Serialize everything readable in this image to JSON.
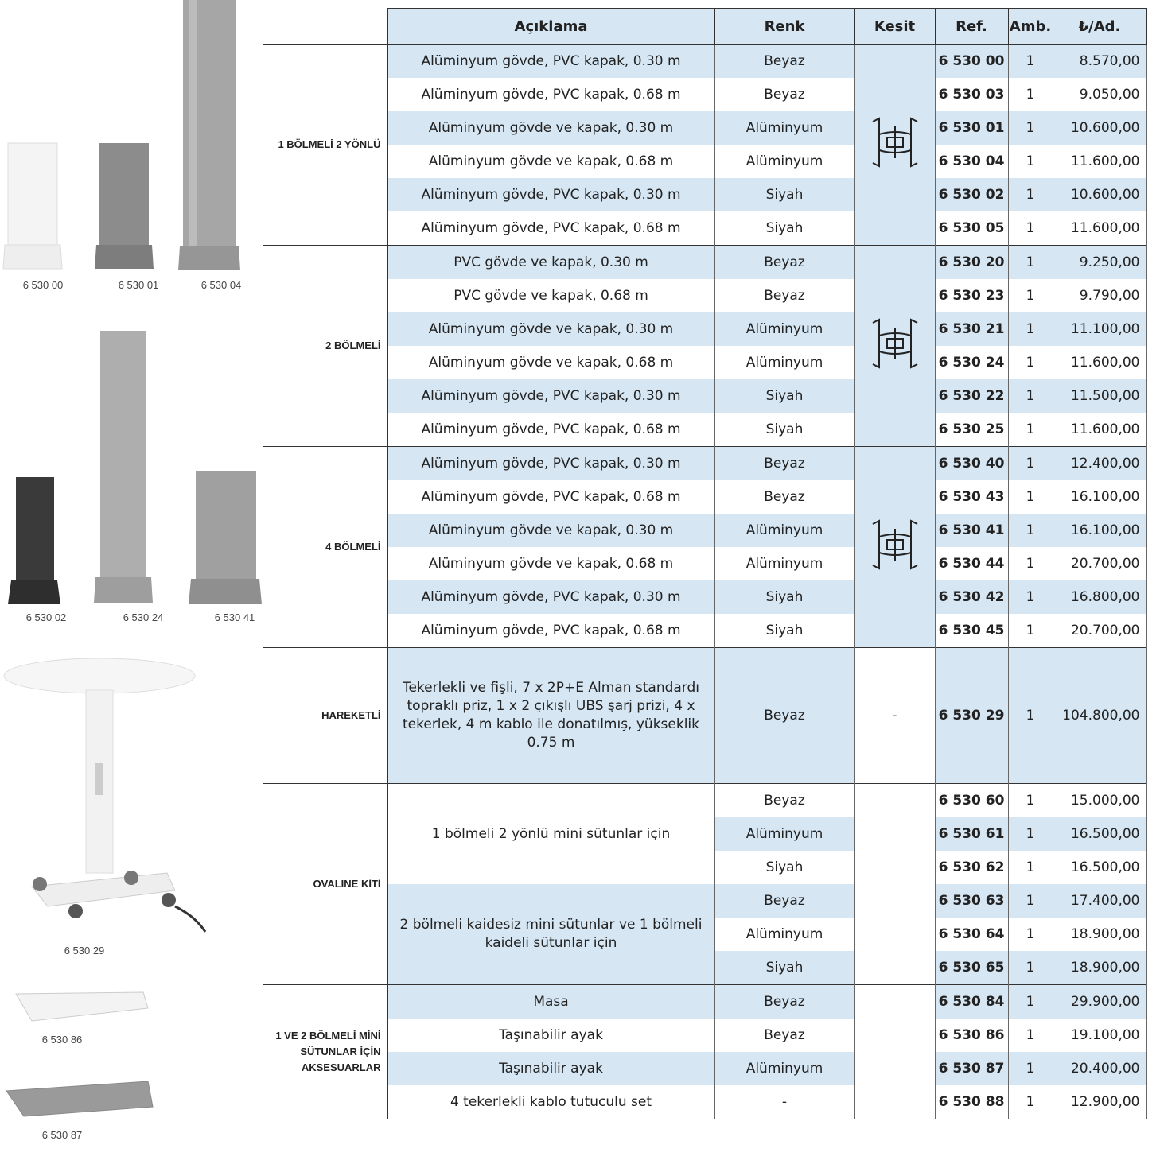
{
  "images": [
    {
      "caption": "6 530 00"
    },
    {
      "caption": "6 530 01"
    },
    {
      "caption": "6 530 04"
    },
    {
      "caption": "6 530 02"
    },
    {
      "caption": "6 530 24"
    },
    {
      "caption": "6 530 41"
    },
    {
      "caption": "6 530 29"
    },
    {
      "caption": "6 530 86"
    },
    {
      "caption": "6 530 87"
    }
  ],
  "table": {
    "columns": [
      "Açıklama",
      "Renk",
      "Kesit",
      "Ref.",
      "Amb.",
      "₺/Ad."
    ],
    "groups": [
      {
        "label": "1 BÖLMELİ 2 YÖNLÜ",
        "items": [
          {
            "description": "Alüminyum gövde, PVC kapak, 0.30 m",
            "rows": [
              {
                "color": "Beyaz",
                "ref": "6 530 00",
                "pack": 1,
                "price": "8.570,00"
              }
            ]
          },
          {
            "description": "Alüminyum gövde, PVC kapak, 0.68 m",
            "rows": [
              {
                "color": "Beyaz",
                "ref": "6 530 03",
                "pack": 1,
                "price": "9.050,00"
              }
            ]
          },
          {
            "description": "Alüminyum gövde ve kapak, 0.30 m",
            "rows": [
              {
                "color": "Alüminyum",
                "ref": "6 530 01",
                "pack": 1,
                "price": "10.600,00"
              }
            ]
          },
          {
            "description": "Alüminyum gövde ve kapak, 0.68 m",
            "rows": [
              {
                "color": "Alüminyum",
                "ref": "6 530 04",
                "pack": 1,
                "price": "11.600,00"
              }
            ]
          },
          {
            "description": "Alüminyum gövde, PVC kapak, 0.30 m",
            "rows": [
              {
                "color": "Siyah",
                "ref": "6 530 02",
                "pack": 1,
                "price": "10.600,00"
              }
            ]
          },
          {
            "description": "Alüminyum gövde, PVC kapak, 0.68 m",
            "rows": [
              {
                "color": "Siyah",
                "ref": "6 530 05",
                "pack": 1,
                "price": "11.600,00"
              }
            ]
          }
        ]
      },
      {
        "label": "2 BÖLMELİ",
        "items": [
          {
            "description": "PVC gövde ve kapak, 0.30 m",
            "rows": [
              {
                "color": "Beyaz",
                "ref": "6 530 20",
                "pack": 1,
                "price": "9.250,00"
              }
            ]
          },
          {
            "description": "PVC gövde ve kapak, 0.68 m",
            "rows": [
              {
                "color": "Beyaz",
                "ref": "6 530 23",
                "pack": 1,
                "price": "9.790,00"
              }
            ]
          },
          {
            "description": "Alüminyum gövde ve kapak, 0.30 m",
            "rows": [
              {
                "color": "Alüminyum",
                "ref": "6 530 21",
                "pack": 1,
                "price": "11.100,00"
              }
            ]
          },
          {
            "description": "Alüminyum gövde ve kapak, 0.68 m",
            "rows": [
              {
                "color": "Alüminyum",
                "ref": "6 530 24",
                "pack": 1,
                "price": "11.600,00"
              }
            ]
          },
          {
            "description": "Alüminyum gövde, PVC kapak, 0.30 m",
            "rows": [
              {
                "color": "Siyah",
                "ref": "6 530 22",
                "pack": 1,
                "price": "11.500,00"
              }
            ]
          },
          {
            "description": "Alüminyum gövde, PVC kapak, 0.68 m",
            "rows": [
              {
                "color": "Siyah",
                "ref": "6 530 25",
                "pack": 1,
                "price": "11.600,00"
              }
            ]
          }
        ]
      },
      {
        "label": "4 BÖLMELİ",
        "items": [
          {
            "description": "Alüminyum gövde, PVC kapak, 0.30 m",
            "rows": [
              {
                "color": "Beyaz",
                "ref": "6 530 40",
                "pack": 1,
                "price": "12.400,00"
              }
            ]
          },
          {
            "description": "Alüminyum gövde, PVC kapak, 0.68 m",
            "rows": [
              {
                "color": "Beyaz",
                "ref": "6 530 43",
                "pack": 1,
                "price": "16.100,00"
              }
            ]
          },
          {
            "description": "Alüminyum gövde ve kapak, 0.30 m",
            "rows": [
              {
                "color": "Alüminyum",
                "ref": "6 530 41",
                "pack": 1,
                "price": "16.100,00"
              }
            ]
          },
          {
            "description": "Alüminyum gövde ve kapak, 0.68 m",
            "rows": [
              {
                "color": "Alüminyum",
                "ref": "6 530 44",
                "pack": 1,
                "price": "20.700,00"
              }
            ]
          },
          {
            "description": "Alüminyum gövde, PVC kapak, 0.30 m",
            "rows": [
              {
                "color": "Siyah",
                "ref": "6 530 42",
                "pack": 1,
                "price": "16.800,00"
              }
            ]
          },
          {
            "description": "Alüminyum gövde, PVC kapak, 0.68 m",
            "rows": [
              {
                "color": "Siyah",
                "ref": "6 530 45",
                "pack": 1,
                "price": "20.700,00"
              }
            ]
          }
        ]
      },
      {
        "label": "HAREKETLİ",
        "section": "-",
        "items": [
          {
            "description": "Tekerlekli ve fişli, 7 x 2P+E Alman standardı topraklı priz, 1 x 2 çıkışlı UBS şarj prizi, 4 x tekerlek, 4 m kablo  ile donatılmış, yükseklik 0.75 m",
            "rows": [
              {
                "color": "Beyaz",
                "ref": "6 530 29",
                "pack": 1,
                "price": "104.800,00"
              }
            ]
          }
        ]
      },
      {
        "label": "OVALINE KİTİ",
        "items": [
          {
            "description": "1 bölmeli 2 yönlü mini sütunlar için",
            "rows": [
              {
                "color": "Beyaz",
                "ref": "6 530 60",
                "pack": 1,
                "price": "15.000,00"
              },
              {
                "color": "Alüminyum",
                "ref": "6 530 61",
                "pack": 1,
                "price": "16.500,00"
              },
              {
                "color": "Siyah",
                "ref": "6 530 62",
                "pack": 1,
                "price": "16.500,00"
              }
            ]
          },
          {
            "description": "2 bölmeli kaidesiz mini sütunlar ve 1 bölmeli kaideli sütunlar için",
            "rows": [
              {
                "color": "Beyaz",
                "ref": "6 530 63",
                "pack": 1,
                "price": "17.400,00"
              },
              {
                "color": "Alüminyum",
                "ref": "6 530 64",
                "pack": 1,
                "price": "18.900,00"
              },
              {
                "color": "Siyah",
                "ref": "6 530 65",
                "pack": 1,
                "price": "18.900,00"
              }
            ]
          }
        ]
      },
      {
        "label": "1 VE 2 BÖLMELİ MİNİ SÜTUNLAR İÇİN AKSESUARLAR",
        "items": [
          {
            "description": "Masa",
            "rows": [
              {
                "color": "Beyaz",
                "ref": "6 530 84",
                "pack": 1,
                "price": "29.900,00"
              }
            ]
          },
          {
            "description": "Taşınabilir ayak",
            "rows": [
              {
                "color": "Beyaz",
                "ref": "6 530 86",
                "pack": 1,
                "price": "19.100,00"
              }
            ]
          },
          {
            "description": "Taşınabilir ayak",
            "rows": [
              {
                "color": "Alüminyum",
                "ref": "6 530 87",
                "pack": 1,
                "price": "20.400,00"
              }
            ]
          },
          {
            "description": "4 tekerlekli kablo tutuculu set",
            "rows": [
              {
                "color": "-",
                "ref": "6 530 88",
                "pack": 1,
                "price": "12.900,00"
              }
            ]
          }
        ]
      }
    ]
  }
}
